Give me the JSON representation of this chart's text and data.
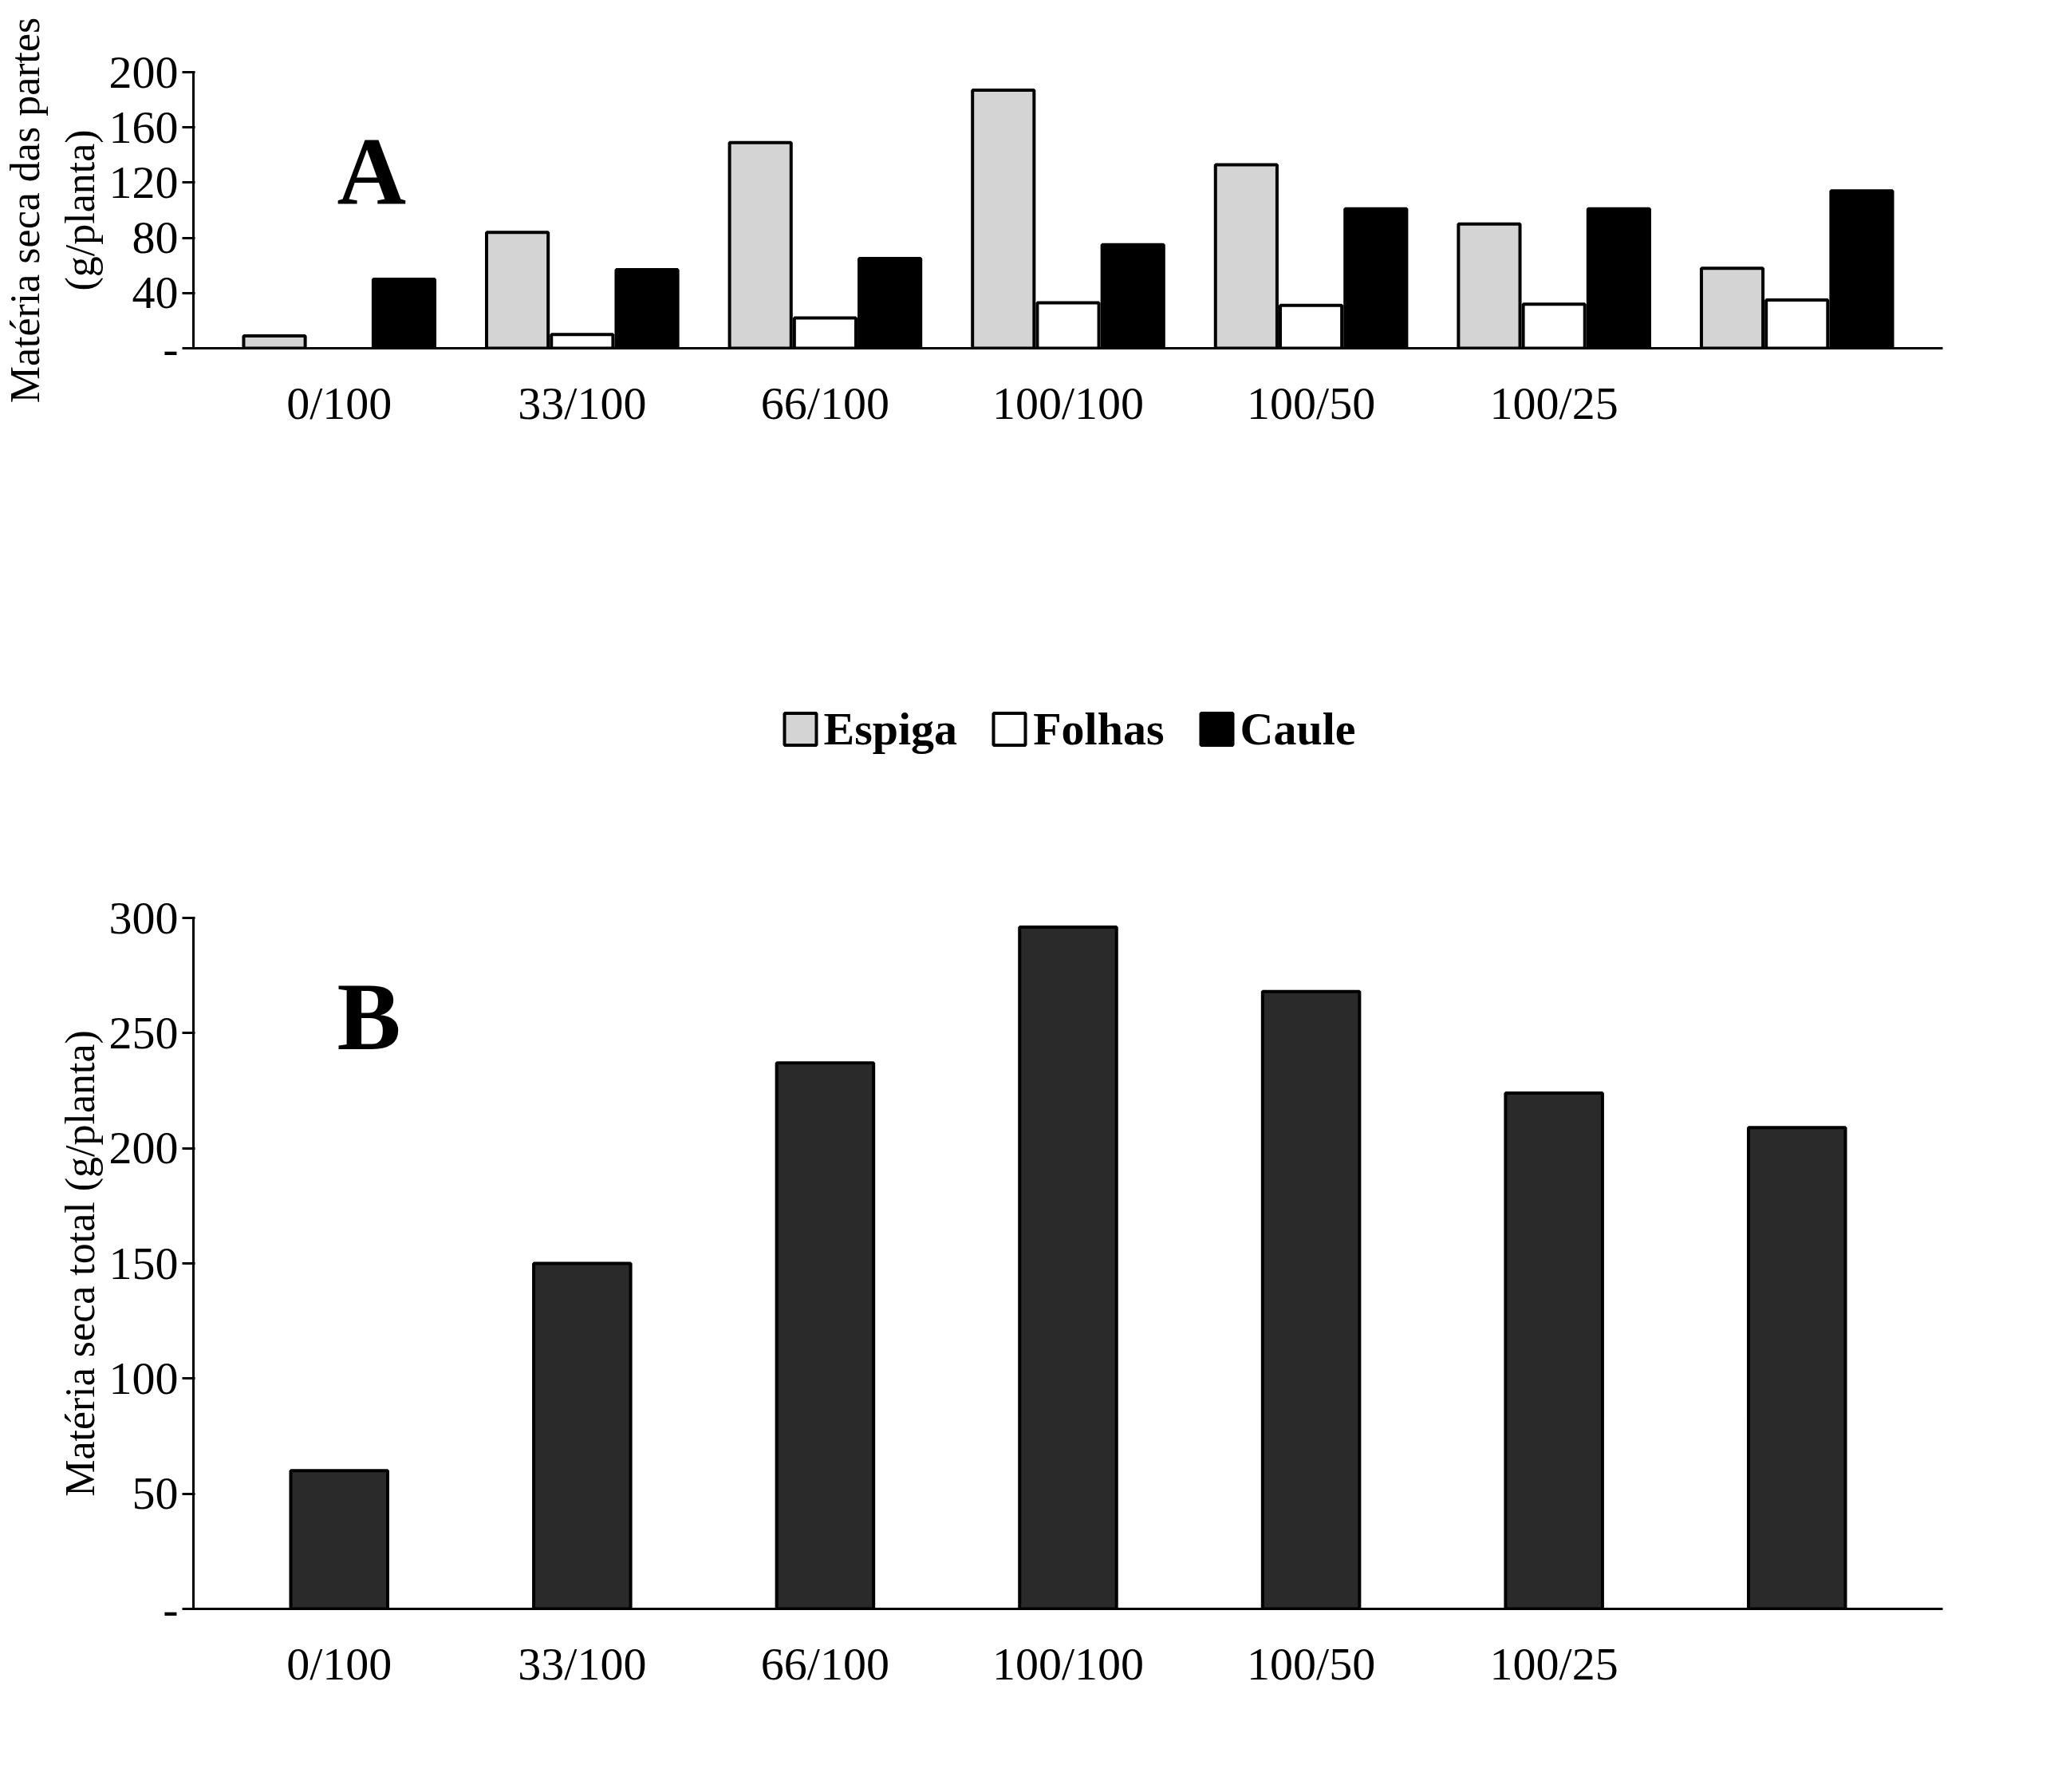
{
  "chart_data": [
    {
      "type": "bar",
      "title": "A",
      "ylabel": "Matéria seca das partes\n(g/planta)",
      "categories": [
        "0/100",
        "33/100",
        "66/100",
        "100/100",
        "100/50",
        "100/25",
        null
      ],
      "series": [
        {
          "name": "Espiga",
          "color": "#d4d4d4",
          "values": [
            9,
            84,
            149,
            187,
            133,
            90,
            58
          ]
        },
        {
          "name": "Folhas",
          "color": "#ffffff",
          "values": [
            null,
            10,
            22,
            33,
            31,
            32,
            35
          ]
        },
        {
          "name": "Caule",
          "color": "#000000",
          "values": [
            50,
            57,
            65,
            75,
            101,
            101,
            114
          ]
        }
      ],
      "ylim": [
        0,
        200
      ],
      "yticks": [
        {
          "value": 0,
          "label": "-"
        },
        40,
        80,
        120,
        160,
        200
      ],
      "grid": false,
      "legend": "bottom"
    },
    {
      "type": "bar",
      "title": "B",
      "ylabel": "Matéria seca total (g/planta)",
      "categories": [
        "0/100",
        "33/100",
        "66/100",
        "100/100",
        "100/50",
        "100/25",
        null
      ],
      "values": [
        60,
        150,
        237,
        296,
        268,
        224,
        209
      ],
      "color": "#2a2a2a",
      "ylim": [
        0,
        300
      ],
      "yticks": [
        {
          "value": 0,
          "label": "-"
        },
        50,
        100,
        150,
        200,
        250,
        300
      ],
      "grid": false,
      "legend": false
    }
  ]
}
